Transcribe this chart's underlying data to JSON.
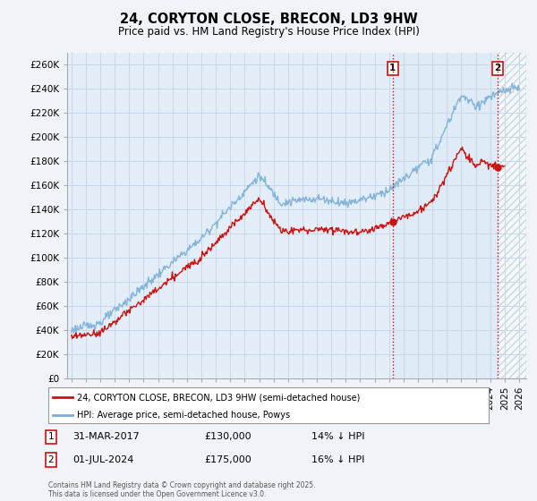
{
  "title": "24, CORYTON CLOSE, BRECON, LD3 9HW",
  "subtitle": "Price paid vs. HM Land Registry's House Price Index (HPI)",
  "ylim": [
    0,
    270000
  ],
  "yticks": [
    0,
    20000,
    40000,
    60000,
    80000,
    100000,
    120000,
    140000,
    160000,
    180000,
    200000,
    220000,
    240000,
    260000
  ],
  "ytick_labels": [
    "£0",
    "£20K",
    "£40K",
    "£60K",
    "£80K",
    "£100K",
    "£120K",
    "£140K",
    "£160K",
    "£180K",
    "£200K",
    "£220K",
    "£240K",
    "£260K"
  ],
  "hpi_color": "#7aaed6",
  "price_color": "#cc1111",
  "background_color": "#f0f4f8",
  "plot_bg_color": "#e4eef8",
  "grid_color": "#c8d8e8",
  "marker1_x": 2017.25,
  "marker2_x": 2024.5,
  "marker1_y": 130000,
  "marker2_y": 175000,
  "legend_label1": "24, CORYTON CLOSE, BRECON, LD3 9HW (semi-detached house)",
  "legend_label2": "HPI: Average price, semi-detached house, Powys",
  "annotation1_num": "1",
  "annotation1_date": "31-MAR-2017",
  "annotation1_price": "£130,000",
  "annotation1_hpi": "14% ↓ HPI",
  "annotation2_num": "2",
  "annotation2_date": "01-JUL-2024",
  "annotation2_price": "£175,000",
  "annotation2_hpi": "16% ↓ HPI",
  "footer": "Contains HM Land Registry data © Crown copyright and database right 2025.\nThis data is licensed under the Open Government Licence v3.0.",
  "vline_color": "#cc1111",
  "xmin": 1994.7,
  "xmax": 2026.5
}
